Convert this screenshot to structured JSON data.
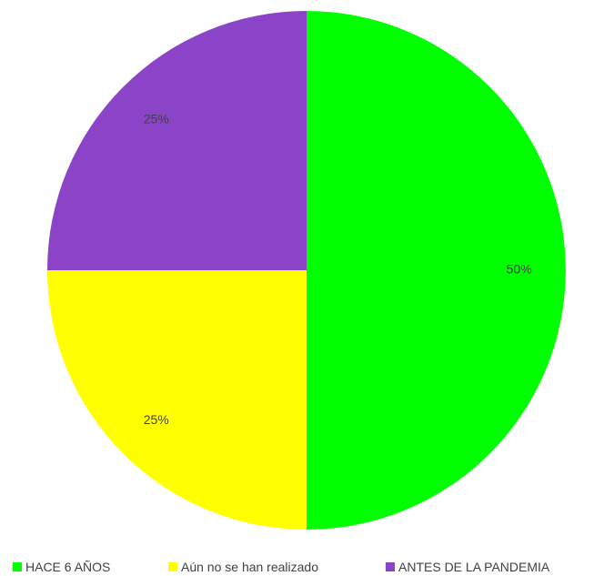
{
  "chart_data": {
    "type": "pie",
    "categories": [
      "HACE 6 AÑOS",
      "Aún no se han realizado",
      "ANTES DE LA PANDEMIA"
    ],
    "values": [
      50,
      25,
      25
    ],
    "data_labels": [
      "50%",
      "25%",
      "25%"
    ],
    "colors": [
      "#00ff00",
      "#ffff00",
      "#8b44c8"
    ],
    "legend_position": "bottom",
    "title": ""
  }
}
